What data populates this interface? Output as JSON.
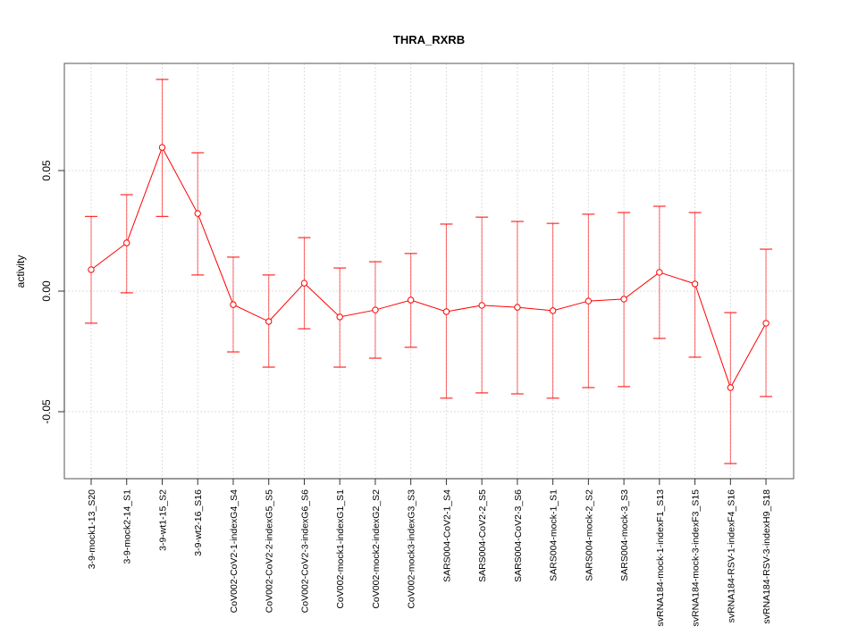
{
  "chart_data": {
    "type": "line",
    "title": "THRA_RXRB",
    "xlabel": "",
    "ylabel": "activity",
    "ylim": [
      -0.079,
      0.093
    ],
    "yticks": [
      -0.05,
      0.0,
      0.05
    ],
    "ytick_labels": [
      "-0.05",
      "0.00",
      "0.05"
    ],
    "grid": true,
    "color": "#ff0000",
    "categories": [
      "3-9-mock1-13_S20",
      "3-9-mock2-14_S1",
      "3-9-wt1-15_S2",
      "3-9-wt2-16_S16",
      "CoV002-CoV2-1-indexG4_S4",
      "CoV002-CoV2-2-indexG5_S5",
      "CoV002-CoV2-3-indexG6_S6",
      "CoV002-mock1-indexG1_S1",
      "CoV002-mock2-indexG2_S2",
      "CoV002-mock3-indexG3_S3",
      "SARS004-CoV2-1_S4",
      "SARS004-CoV2-2_S5",
      "SARS004-CoV2-3_S6",
      "SARS004-mock-1_S1",
      "SARS004-mock-2_S2",
      "SARS004-mock-3_S3",
      "svRNA184-mock-1-indexF1_S13",
      "svRNA184-mock-3-indexF3_S15",
      "svRNA184-RSV-1-indexF4_S16",
      "svRNA184-RSV-3-indexH9_S18"
    ],
    "values": [
      0.0089,
      0.02,
      0.0596,
      0.0322,
      -0.0056,
      -0.0126,
      0.0033,
      -0.0107,
      -0.0078,
      -0.0037,
      -0.0085,
      -0.0059,
      -0.0067,
      -0.0081,
      -0.0041,
      -0.0033,
      0.0078,
      0.003,
      -0.04,
      -0.0133
    ],
    "upper": [
      0.031,
      0.04,
      0.0878,
      0.0574,
      0.0141,
      0.0067,
      0.0222,
      0.0096,
      0.0122,
      0.0156,
      0.0278,
      0.0307,
      0.0289,
      0.0281,
      0.0319,
      0.0326,
      0.0352,
      0.0326,
      -0.0089,
      0.0174
    ],
    "lower": [
      -0.0133,
      -0.0007,
      0.031,
      0.0067,
      -0.0252,
      -0.0315,
      -0.0156,
      -0.0315,
      -0.0278,
      -0.0233,
      -0.0444,
      -0.0422,
      -0.0426,
      -0.0444,
      -0.04,
      -0.0396,
      -0.0196,
      -0.0274,
      -0.0715,
      -0.0437
    ]
  }
}
